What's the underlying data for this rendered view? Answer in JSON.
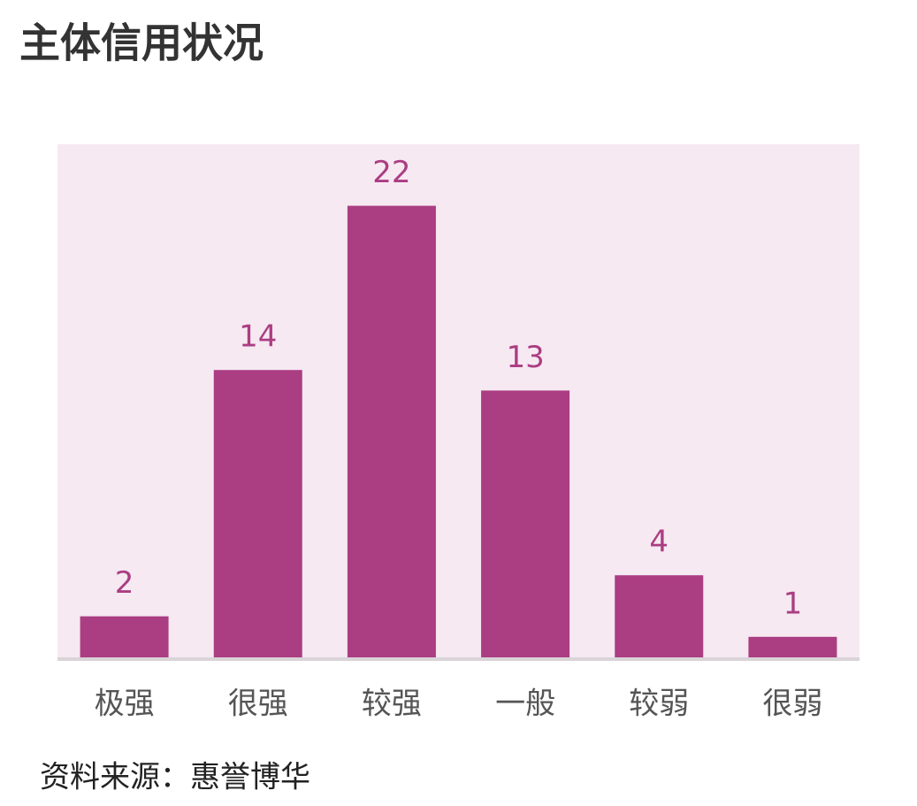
{
  "chart_data": {
    "type": "bar",
    "title": "主体信用状况",
    "categories": [
      "极强",
      "很强",
      "较强",
      "一般",
      "较弱",
      "很弱"
    ],
    "values": [
      2,
      14,
      22,
      13,
      4,
      1
    ],
    "color": "#ab3d82",
    "ylim": [
      0,
      25
    ],
    "source": "资料来源：惠誉博华"
  }
}
